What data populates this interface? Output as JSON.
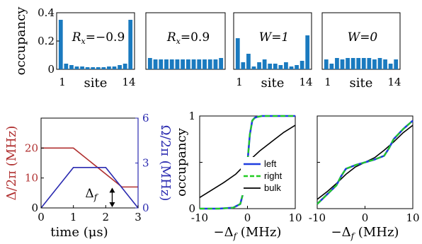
{
  "chart_data": [
    {
      "type": "bar",
      "panel": "top-1",
      "annotation": "R_x=−0.9",
      "ylabel": "occupancy",
      "xlabel": "site",
      "xticks": [
        "1",
        "14"
      ],
      "yticks": [
        "0",
        "0.2",
        "0.4"
      ],
      "ylim": [
        0,
        0.4
      ],
      "categories": [
        1,
        2,
        3,
        4,
        5,
        6,
        7,
        8,
        9,
        10,
        11,
        12,
        13,
        14
      ],
      "values": [
        0.35,
        0.04,
        0.03,
        0.02,
        0.02,
        0.015,
        0.015,
        0.015,
        0.015,
        0.02,
        0.02,
        0.03,
        0.04,
        0.35
      ]
    },
    {
      "type": "bar",
      "panel": "top-2",
      "annotation": "R_x=0.9",
      "xlabel": "",
      "xticks": [],
      "ylim": [
        0,
        0.4
      ],
      "categories": [
        1,
        2,
        3,
        4,
        5,
        6,
        7,
        8,
        9,
        10,
        11,
        12,
        13,
        14
      ],
      "values": [
        0.08,
        0.07,
        0.07,
        0.07,
        0.07,
        0.07,
        0.07,
        0.07,
        0.07,
        0.07,
        0.07,
        0.07,
        0.07,
        0.08
      ]
    },
    {
      "type": "bar",
      "panel": "top-3",
      "annotation": "W=1",
      "xlabel": "site",
      "xticks": [
        "1",
        "14"
      ],
      "ylim": [
        0,
        0.4
      ],
      "categories": [
        1,
        2,
        3,
        4,
        5,
        6,
        7,
        8,
        9,
        10,
        11,
        12,
        13,
        14
      ],
      "values": [
        0.22,
        0.05,
        0.11,
        0.02,
        0.05,
        0.07,
        0.04,
        0.04,
        0.03,
        0.05,
        0.02,
        0.03,
        0.06,
        0.24
      ]
    },
    {
      "type": "bar",
      "panel": "top-4",
      "annotation": "W=0",
      "xlabel": "site",
      "xticks": [
        "1",
        "14"
      ],
      "ylim": [
        0,
        0.4
      ],
      "categories": [
        1,
        2,
        3,
        4,
        5,
        6,
        7,
        8,
        9,
        10,
        11,
        12,
        13,
        14
      ],
      "values": [
        0.07,
        0.04,
        0.08,
        0.07,
        0.08,
        0.08,
        0.08,
        0.08,
        0.08,
        0.07,
        0.08,
        0.07,
        0.04,
        0.07
      ]
    },
    {
      "type": "line",
      "panel": "bottom-1",
      "xlabel": "time (μs)",
      "ylabel": "Δ/2π (MHz)",
      "ylabel_right": "Ω/2π (MHz)",
      "annotation": "Δ_f",
      "xlim": [
        0,
        3
      ],
      "ylim": [
        0,
        30
      ],
      "ylim_right": [
        0,
        6
      ],
      "xticks": [
        "0",
        "1",
        "2",
        "3"
      ],
      "yticks": [
        "0",
        "10",
        "20"
      ],
      "yticks_right": [
        "0",
        "3",
        "6"
      ],
      "colors": {
        "delta": "#b03030",
        "omega": "#2a2ab0"
      },
      "series": [
        {
          "axis": "left",
          "x": [
            0,
            1,
            2.5,
            3
          ],
          "y": [
            20,
            20,
            7,
            7
          ]
        },
        {
          "axis": "right",
          "x": [
            0,
            1,
            2,
            3
          ],
          "y": [
            0,
            2.7,
            2.7,
            0
          ]
        }
      ]
    },
    {
      "type": "line",
      "panel": "bottom-2",
      "xlabel": "−Δ_f (MHz)",
      "ylabel": "occupancy",
      "xlim": [
        -10,
        10
      ],
      "ylim": [
        0,
        1
      ],
      "xticks": [
        "-10",
        "0",
        "10"
      ],
      "yticks": [
        "0",
        "1"
      ],
      "legend": {
        "placement": "bottom-right",
        "entries": [
          "left",
          "right",
          "bulk"
        ]
      },
      "colors": {
        "left": "#1f3de0",
        "right": "#22cc22",
        "bulk": "#000000"
      },
      "series": [
        {
          "name": "left",
          "x": [
            -10,
            -6,
            -3,
            -1.5,
            -0.5,
            0,
            0.5,
            1,
            1.5,
            2,
            3,
            6,
            10
          ],
          "y": [
            0,
            0,
            0.01,
            0.05,
            0.25,
            0.5,
            0.8,
            0.95,
            0.98,
            0.99,
            1,
            1,
            1
          ]
        },
        {
          "name": "right",
          "x": [
            -10,
            -6,
            -3,
            -1.5,
            -0.5,
            0,
            0.5,
            1,
            1.5,
            2,
            3,
            6,
            10
          ],
          "y": [
            0,
            0,
            0.01,
            0.05,
            0.25,
            0.5,
            0.8,
            0.95,
            0.98,
            0.99,
            1,
            1,
            1
          ]
        },
        {
          "name": "bulk",
          "x": [
            -10,
            -7.5,
            -5,
            -2.5,
            0,
            2.5,
            5,
            7.5,
            10
          ],
          "y": [
            0.12,
            0.2,
            0.28,
            0.37,
            0.5,
            0.62,
            0.72,
            0.82,
            0.9
          ]
        }
      ]
    },
    {
      "type": "line",
      "panel": "bottom-3",
      "xlabel": "−Δ_f (MHz)",
      "xlim": [
        -10,
        10
      ],
      "ylim": [
        0,
        1
      ],
      "xticks": [
        "-10",
        "0",
        "10"
      ],
      "colors": {
        "left": "#1f3de0",
        "right": "#22cc22",
        "bulk": "#000000"
      },
      "series": [
        {
          "name": "left",
          "x": [
            -10,
            -8,
            -6,
            -5,
            -4,
            -2,
            0,
            2,
            4,
            5,
            6,
            8,
            10
          ],
          "y": [
            0.05,
            0.15,
            0.25,
            0.35,
            0.43,
            0.47,
            0.5,
            0.53,
            0.57,
            0.65,
            0.75,
            0.86,
            0.95
          ]
        },
        {
          "name": "right",
          "x": [
            -10,
            -8,
            -6,
            -5,
            -4,
            -2,
            0,
            2,
            4,
            5,
            6,
            8,
            10
          ],
          "y": [
            0.05,
            0.15,
            0.25,
            0.35,
            0.43,
            0.47,
            0.5,
            0.53,
            0.57,
            0.65,
            0.75,
            0.86,
            0.95
          ]
        },
        {
          "name": "bulk",
          "x": [
            -10,
            -8,
            -6,
            -4,
            -2,
            0,
            2,
            4,
            6,
            8,
            10
          ],
          "y": [
            0.1,
            0.18,
            0.27,
            0.37,
            0.45,
            0.5,
            0.55,
            0.63,
            0.72,
            0.82,
            0.9
          ]
        }
      ]
    }
  ]
}
